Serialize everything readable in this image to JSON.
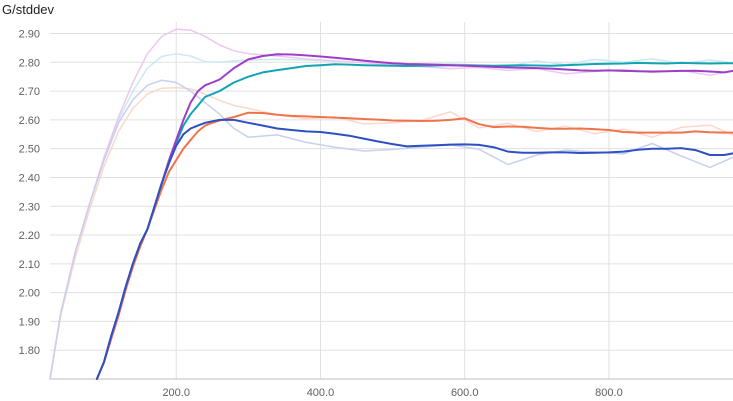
{
  "chart_data": {
    "type": "line",
    "title": "G/stddev",
    "xlabel": "",
    "ylabel": "",
    "xlim": [
      25,
      972
    ],
    "ylim": [
      1.7,
      2.94
    ],
    "grid": true,
    "x_ticks": [
      200,
      400,
      600,
      800
    ],
    "x_tick_labels": [
      "200.0",
      "400.0",
      "600.0",
      "800.0"
    ],
    "y_ticks": [
      1.8,
      1.9,
      2.0,
      2.1,
      2.2,
      2.3,
      2.4,
      2.5,
      2.6,
      2.7,
      2.8,
      2.9
    ],
    "y_tick_labels": [
      "1.80",
      "1.90",
      "2.00",
      "2.10",
      "2.20",
      "2.30",
      "2.40",
      "2.50",
      "2.60",
      "2.70",
      "2.80",
      "2.90"
    ],
    "series": [
      {
        "color": "#12a4b4",
        "x": [
          90,
          100,
          110,
          120,
          130,
          140,
          150,
          160,
          170,
          180,
          190,
          200,
          210,
          220,
          230,
          240,
          250,
          260,
          280,
          300,
          320,
          340,
          360,
          380,
          400,
          420,
          440,
          460,
          480,
          500,
          520,
          540,
          560,
          580,
          600,
          620,
          640,
          660,
          680,
          700,
          720,
          740,
          760,
          780,
          800,
          820,
          840,
          860,
          880,
          900,
          920,
          940,
          960,
          972
        ],
        "values": [
          1.7,
          1.76,
          1.85,
          1.93,
          2.02,
          2.1,
          2.17,
          2.22,
          2.3,
          2.38,
          2.45,
          2.52,
          2.58,
          2.62,
          2.65,
          2.68,
          2.69,
          2.7,
          2.73,
          2.75,
          2.765,
          2.773,
          2.78,
          2.787,
          2.79,
          2.793,
          2.792,
          2.79,
          2.789,
          2.788,
          2.787,
          2.788,
          2.789,
          2.79,
          2.79,
          2.789,
          2.788,
          2.789,
          2.79,
          2.789,
          2.788,
          2.79,
          2.792,
          2.794,
          2.795,
          2.796,
          2.798,
          2.797,
          2.796,
          2.798,
          2.797,
          2.796,
          2.797,
          2.797
        ]
      },
      {
        "color": "#9c3fc6",
        "x": [
          90,
          100,
          110,
          120,
          130,
          140,
          150,
          160,
          170,
          180,
          190,
          200,
          210,
          220,
          230,
          240,
          250,
          260,
          280,
          300,
          320,
          340,
          360,
          380,
          400,
          420,
          440,
          460,
          480,
          500,
          520,
          540,
          560,
          580,
          600,
          620,
          640,
          660,
          680,
          700,
          720,
          740,
          760,
          780,
          800,
          820,
          840,
          860,
          880,
          900,
          920,
          940,
          960,
          972
        ],
        "values": [
          1.7,
          1.76,
          1.85,
          1.93,
          2.02,
          2.1,
          2.17,
          2.22,
          2.3,
          2.38,
          2.46,
          2.53,
          2.6,
          2.66,
          2.7,
          2.72,
          2.73,
          2.74,
          2.78,
          2.81,
          2.822,
          2.828,
          2.827,
          2.824,
          2.82,
          2.816,
          2.811,
          2.806,
          2.801,
          2.797,
          2.794,
          2.793,
          2.792,
          2.79,
          2.788,
          2.786,
          2.784,
          2.782,
          2.781,
          2.78,
          2.778,
          2.775,
          2.772,
          2.771,
          2.772,
          2.77,
          2.769,
          2.768,
          2.769,
          2.77,
          2.771,
          2.768,
          2.765,
          2.77
        ]
      },
      {
        "color": "#f0744b",
        "x": [
          90,
          100,
          110,
          120,
          130,
          140,
          150,
          160,
          170,
          180,
          190,
          200,
          210,
          220,
          230,
          240,
          250,
          260,
          280,
          300,
          320,
          340,
          360,
          380,
          400,
          420,
          440,
          460,
          480,
          500,
          520,
          540,
          560,
          580,
          600,
          620,
          640,
          660,
          680,
          700,
          720,
          740,
          760,
          780,
          800,
          820,
          840,
          860,
          880,
          900,
          920,
          940,
          960,
          972
        ],
        "values": [
          1.7,
          1.76,
          1.84,
          1.92,
          2.01,
          2.09,
          2.16,
          2.22,
          2.29,
          2.36,
          2.42,
          2.46,
          2.5,
          2.53,
          2.56,
          2.58,
          2.59,
          2.598,
          2.61,
          2.625,
          2.624,
          2.618,
          2.614,
          2.612,
          2.61,
          2.608,
          2.606,
          2.603,
          2.601,
          2.598,
          2.597,
          2.596,
          2.597,
          2.6,
          2.605,
          2.585,
          2.575,
          2.577,
          2.576,
          2.572,
          2.569,
          2.569,
          2.57,
          2.568,
          2.565,
          2.558,
          2.556,
          2.556,
          2.556,
          2.556,
          2.56,
          2.557,
          2.556,
          2.556
        ]
      },
      {
        "color": "#2d50c3",
        "x": [
          90,
          100,
          110,
          120,
          130,
          140,
          150,
          160,
          170,
          180,
          190,
          200,
          210,
          220,
          230,
          240,
          250,
          260,
          280,
          300,
          320,
          340,
          360,
          380,
          400,
          420,
          440,
          460,
          480,
          500,
          520,
          540,
          560,
          580,
          600,
          620,
          640,
          660,
          680,
          700,
          720,
          740,
          760,
          780,
          800,
          820,
          840,
          860,
          880,
          900,
          920,
          940,
          960,
          972
        ],
        "values": [
          1.7,
          1.76,
          1.85,
          1.93,
          2.02,
          2.1,
          2.17,
          2.22,
          2.3,
          2.38,
          2.45,
          2.51,
          2.55,
          2.57,
          2.58,
          2.59,
          2.595,
          2.6,
          2.6,
          2.59,
          2.58,
          2.57,
          2.565,
          2.56,
          2.558,
          2.552,
          2.545,
          2.535,
          2.525,
          2.516,
          2.508,
          2.51,
          2.512,
          2.514,
          2.515,
          2.513,
          2.505,
          2.49,
          2.486,
          2.486,
          2.487,
          2.487,
          2.485,
          2.486,
          2.487,
          2.49,
          2.496,
          2.5,
          2.5,
          2.502,
          2.495,
          2.478,
          2.478,
          2.484
        ]
      },
      {
        "color": "#cbe9f1",
        "x": [
          25,
          40,
          60,
          80,
          100,
          120,
          140,
          160,
          180,
          200,
          220,
          240,
          260,
          280,
          300,
          340,
          380,
          420,
          460,
          500,
          540,
          580,
          620,
          660,
          700,
          740,
          780,
          820,
          860,
          900,
          940,
          972
        ],
        "values": [
          1.7,
          1.93,
          2.14,
          2.31,
          2.47,
          2.6,
          2.7,
          2.78,
          2.82,
          2.83,
          2.822,
          2.802,
          2.8,
          2.805,
          2.808,
          2.81,
          2.808,
          2.804,
          2.8,
          2.796,
          2.792,
          2.795,
          2.79,
          2.786,
          2.805,
          2.792,
          2.81,
          2.8,
          2.812,
          2.796,
          2.808,
          2.798
        ]
      },
      {
        "color": "#ecc7f2",
        "x": [
          25,
          40,
          60,
          80,
          100,
          120,
          140,
          160,
          180,
          200,
          220,
          240,
          260,
          280,
          300,
          340,
          380,
          420,
          460,
          500,
          540,
          580,
          620,
          660,
          700,
          740,
          780,
          820,
          860,
          900,
          940,
          972
        ],
        "values": [
          1.7,
          1.93,
          2.14,
          2.31,
          2.47,
          2.61,
          2.73,
          2.83,
          2.89,
          2.915,
          2.912,
          2.89,
          2.86,
          2.84,
          2.83,
          2.822,
          2.812,
          2.805,
          2.798,
          2.792,
          2.785,
          2.778,
          2.782,
          2.772,
          2.778,
          2.76,
          2.768,
          2.775,
          2.765,
          2.772,
          2.755,
          2.77
        ]
      },
      {
        "color": "#fcd8cb",
        "x": [
          25,
          40,
          60,
          80,
          100,
          120,
          140,
          160,
          180,
          200,
          220,
          240,
          260,
          280,
          300,
          340,
          380,
          420,
          460,
          500,
          540,
          580,
          620,
          660,
          700,
          740,
          780,
          820,
          860,
          900,
          940,
          972
        ],
        "values": [
          1.7,
          1.92,
          2.12,
          2.29,
          2.44,
          2.56,
          2.64,
          2.69,
          2.71,
          2.712,
          2.708,
          2.69,
          2.668,
          2.65,
          2.64,
          2.618,
          2.604,
          2.61,
          2.586,
          2.59,
          2.598,
          2.628,
          2.572,
          2.588,
          2.56,
          2.578,
          2.552,
          2.568,
          2.54,
          2.574,
          2.582,
          2.548
        ]
      },
      {
        "color": "#c7d0ee",
        "x": [
          25,
          40,
          60,
          80,
          100,
          120,
          140,
          160,
          180,
          200,
          220,
          240,
          260,
          280,
          300,
          340,
          380,
          420,
          460,
          500,
          540,
          580,
          620,
          660,
          700,
          740,
          780,
          820,
          860,
          900,
          940,
          972
        ],
        "values": [
          1.7,
          1.93,
          2.14,
          2.31,
          2.46,
          2.59,
          2.67,
          2.72,
          2.738,
          2.73,
          2.7,
          2.66,
          2.62,
          2.57,
          2.54,
          2.548,
          2.522,
          2.505,
          2.492,
          2.497,
          2.506,
          2.513,
          2.498,
          2.445,
          2.478,
          2.495,
          2.488,
          2.482,
          2.518,
          2.475,
          2.435,
          2.47
        ]
      }
    ]
  }
}
